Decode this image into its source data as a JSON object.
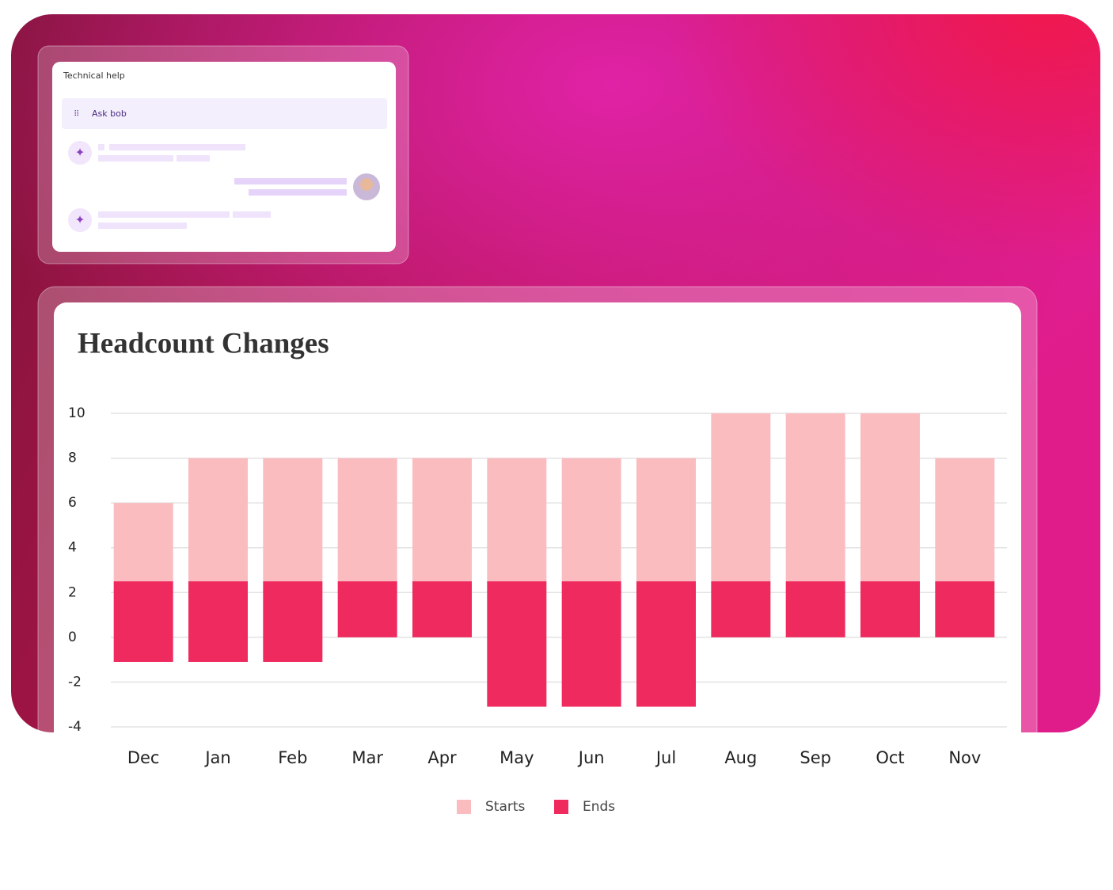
{
  "chat": {
    "title": "Technical help",
    "button": "Ask bob"
  },
  "chart_data": {
    "type": "range_bar",
    "title": "Headcount Changes",
    "categories": [
      "Dec",
      "Jan",
      "Feb",
      "Mar",
      "Apr",
      "May",
      "Jun",
      "Jul",
      "Aug",
      "Sep",
      "Oct",
      "Nov"
    ],
    "series": [
      {
        "name": "Starts",
        "color": "#fbbcc0",
        "values": [
          [
            2.5,
            6
          ],
          [
            2.5,
            8
          ],
          [
            2.5,
            8
          ],
          [
            2.5,
            8
          ],
          [
            2.5,
            8
          ],
          [
            2.5,
            8
          ],
          [
            2.5,
            8
          ],
          [
            2.5,
            8
          ],
          [
            2.5,
            10
          ],
          [
            2.5,
            10
          ],
          [
            2.5,
            10
          ],
          [
            2.5,
            8
          ]
        ]
      },
      {
        "name": "Ends",
        "color": "#ee2a5e",
        "values": [
          [
            -1.1,
            2.5
          ],
          [
            -1.1,
            2.5
          ],
          [
            -1.1,
            2.5
          ],
          [
            0,
            2.5
          ],
          [
            0,
            2.5
          ],
          [
            -3.1,
            2.5
          ],
          [
            -3.1,
            2.5
          ],
          [
            -3.1,
            2.5
          ],
          [
            0,
            2.5
          ],
          [
            0,
            2.5
          ],
          [
            0,
            2.5
          ],
          [
            0,
            2.5
          ]
        ]
      }
    ],
    "ylim": [
      -4,
      10
    ],
    "yticks": [
      10,
      8,
      6,
      4,
      2,
      0,
      -2,
      -4
    ],
    "grid": true,
    "legend": "bottom"
  }
}
